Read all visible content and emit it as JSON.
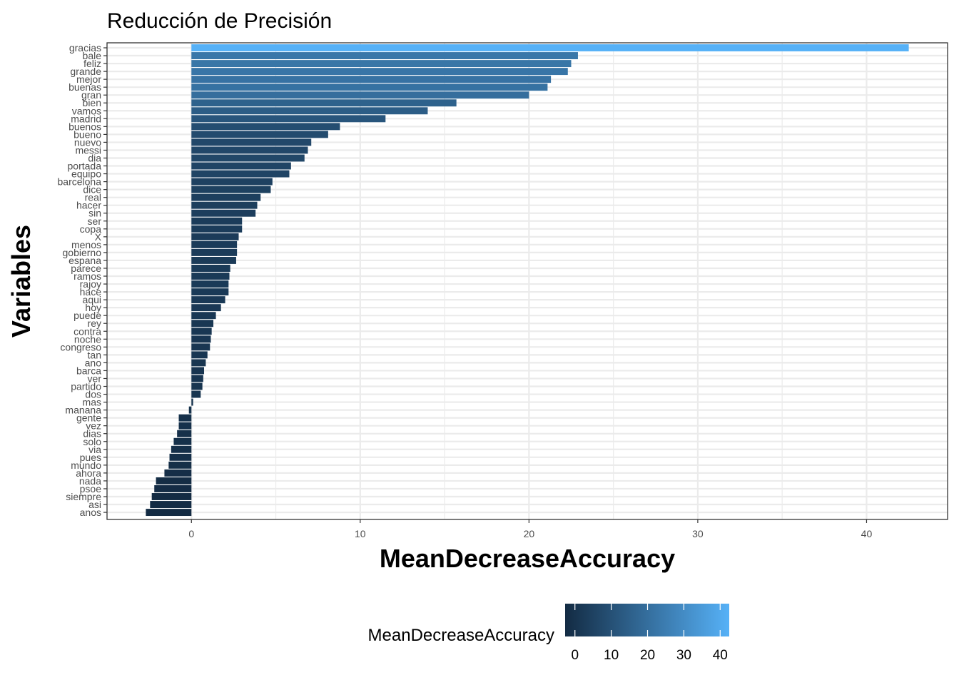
{
  "chart_data": {
    "type": "bar",
    "orientation": "horizontal",
    "title": "Reducción de Precisión",
    "xlabel": "MeanDecreaseAccuracy",
    "ylabel": "Variables",
    "xlim": [
      -5,
      44.8
    ],
    "x_ticks": [
      0,
      10,
      20,
      30,
      40
    ],
    "grid": true,
    "legend": {
      "title": "MeanDecreaseAccuracy",
      "placement": "bottom",
      "ticks": [
        0,
        10,
        20,
        30,
        40
      ],
      "range": [
        -2.7,
        42.5
      ],
      "color_low": "#132b43",
      "color_high": "#56b1f7"
    },
    "categories": [
      "gracias",
      "bale",
      "feliz",
      "grande",
      "mejor",
      "buenas",
      "gran",
      "bien",
      "vamos",
      "madrid",
      "buenos",
      "bueno",
      "nuevo",
      "messi",
      "dia",
      "portada",
      "equipo",
      "barcelona",
      "dice",
      "real",
      "hacer",
      "sin",
      "ser",
      "copa",
      "X",
      "menos",
      "gobierno",
      "espana",
      "parece",
      "ramos",
      "rajoy",
      "hace",
      "aqui",
      "hoy",
      "puede",
      "rey",
      "contra",
      "noche",
      "congreso",
      "tan",
      "ano",
      "barca",
      "ver",
      "partido",
      "dos",
      "mas",
      "manana",
      "gente",
      "vez",
      "dias",
      "solo",
      "via",
      "pues",
      "mundo",
      "ahora",
      "nada",
      "psoe",
      "siempre",
      "asi",
      "anos"
    ],
    "values": [
      42.5,
      22.9,
      22.5,
      22.3,
      21.3,
      21.1,
      20.0,
      15.7,
      14.0,
      11.5,
      8.8,
      8.1,
      7.1,
      6.9,
      6.7,
      5.9,
      5.8,
      4.8,
      4.7,
      4.1,
      3.9,
      3.8,
      3.0,
      3.0,
      2.8,
      2.7,
      2.7,
      2.65,
      2.3,
      2.25,
      2.2,
      2.2,
      2.0,
      1.75,
      1.45,
      1.3,
      1.2,
      1.15,
      1.1,
      0.95,
      0.85,
      0.75,
      0.7,
      0.65,
      0.55,
      0.1,
      -0.15,
      -0.75,
      -0.75,
      -0.85,
      -1.05,
      -1.2,
      -1.3,
      -1.35,
      -1.6,
      -2.1,
      -2.2,
      -2.35,
      -2.45,
      -2.7
    ]
  }
}
